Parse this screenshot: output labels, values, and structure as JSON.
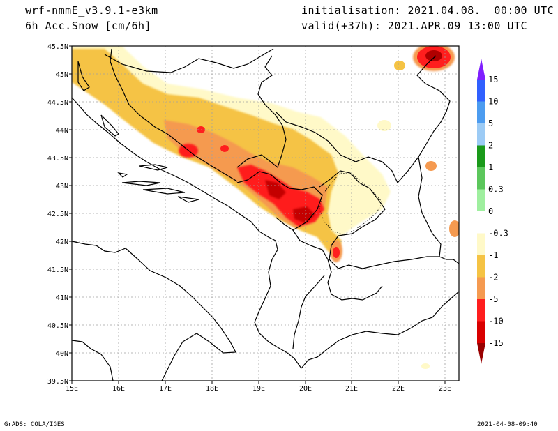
{
  "header": {
    "model": "wrf-nmmE_v3.9.1-e3km",
    "variable": "6h Acc.Snow [cm/6h]",
    "init": "initialisation: 2021.04.08.  00:00 UTC",
    "valid": "valid(+37h): 2021.APR.09 13:00 UTC"
  },
  "footer": {
    "left": "GrADS: COLA/IGES",
    "right": "2021-04-08-09:40"
  },
  "map": {
    "lon_labels": [
      "15E",
      "16E",
      "17E",
      "18E",
      "19E",
      "20E",
      "21E",
      "22E",
      "23E"
    ],
    "lat_labels": [
      "45.5N",
      "45N",
      "44.5N",
      "44N",
      "43.5N",
      "43N",
      "42.5N",
      "42N",
      "41.5N",
      "41N",
      "40.5N",
      "40N",
      "39.5N"
    ]
  },
  "colorbar": {
    "labels": [
      "15",
      "10",
      "5",
      "2",
      "1",
      "0.3",
      "0",
      "-0.3",
      "-1",
      "-2",
      "-5",
      "-10",
      "-15"
    ],
    "colors": [
      "#7f1fff",
      "#3060ff",
      "#4c9cf0",
      "#9ccbf5",
      "#1a9a1a",
      "#5cc75c",
      "#9fef9f",
      "#ffffff",
      "#fff9c8",
      "#f5c344",
      "#f59a50",
      "#ff1e1e",
      "#d90000",
      "#990000"
    ]
  }
}
